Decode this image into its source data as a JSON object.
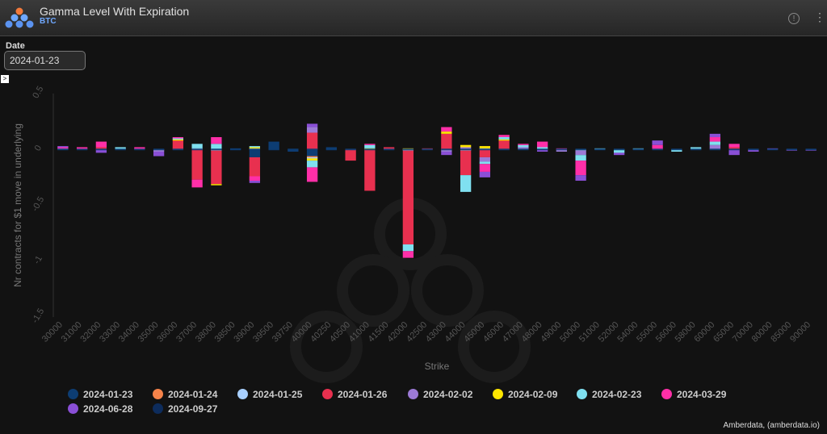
{
  "header": {
    "title": "Gamma Level With Expiration",
    "subtitle": "BTC",
    "info_icon": "info-icon",
    "menu_icon": "more-vertical-icon"
  },
  "filters": {
    "date_label": "Date",
    "date_value": "2024-01-23",
    "expand_glyph": ">"
  },
  "credit": "Amberdata, (amberdata.io)",
  "chart_data": {
    "type": "bar",
    "stacked": true,
    "xlabel": "Strike",
    "ylabel": "Nr contracts for $1 move in underlying",
    "ylim": [
      -1.5,
      0.5
    ],
    "yticks": [
      0.5,
      0,
      -0.5,
      -1,
      -1.5
    ],
    "grid": false,
    "legend_position": "bottom",
    "categories": [
      "30000",
      "31000",
      "32000",
      "33000",
      "34000",
      "35000",
      "36000",
      "37000",
      "38000",
      "38500",
      "39000",
      "39500",
      "39750",
      "40000",
      "40250",
      "40500",
      "41000",
      "41500",
      "42000",
      "42500",
      "43000",
      "44000",
      "45000",
      "46000",
      "47000",
      "48000",
      "49000",
      "50000",
      "51000",
      "52000",
      "54000",
      "55000",
      "56000",
      "58000",
      "60000",
      "65000",
      "70000",
      "80000",
      "85000",
      "90000"
    ],
    "series": [
      {
        "name": "2024-01-23",
        "color": "#0d3d73",
        "values": [
          0,
          0,
          0,
          0,
          0,
          0,
          0,
          0,
          0,
          0.01,
          -0.07,
          0.07,
          -0.02,
          -0.06,
          0.02,
          0,
          0,
          0,
          0,
          0,
          0,
          0,
          0,
          0,
          0,
          0,
          0,
          0,
          0,
          0,
          0,
          0,
          0,
          0,
          0,
          0,
          0,
          0,
          0,
          0
        ]
      },
      {
        "name": "2024-01-24",
        "color": "#f5834a",
        "values": [
          0,
          0,
          0,
          0,
          0,
          0,
          0,
          0,
          0,
          0,
          0,
          0,
          0,
          -0.01,
          0,
          0,
          0,
          0,
          0,
          0,
          0,
          0,
          0,
          0,
          0,
          0,
          0,
          0,
          0,
          0,
          0,
          0,
          0,
          0,
          0,
          0,
          0,
          0,
          0,
          0
        ]
      },
      {
        "name": "2024-01-25",
        "color": "#a8d0ff",
        "values": [
          0,
          0,
          0,
          0,
          0,
          0,
          0,
          0.01,
          -0.01,
          0,
          0.01,
          0,
          0,
          -0.01,
          0,
          0,
          0,
          0,
          -0.01,
          0,
          0,
          -0.01,
          0.01,
          0,
          0,
          0,
          0,
          -0.01,
          0,
          0,
          0,
          0,
          0,
          0,
          0,
          0,
          0,
          0,
          0,
          0
        ]
      },
      {
        "name": "2024-01-26",
        "color": "#e8304f",
        "values": [
          0,
          0,
          0.02,
          0,
          0,
          0,
          0.08,
          -0.27,
          -0.3,
          0,
          -0.17,
          0,
          0,
          0.15,
          0,
          -0.1,
          -0.37,
          0.02,
          -0.84,
          0.01,
          0.14,
          -0.22,
          -0.07,
          0.08,
          0,
          0,
          0,
          0,
          0,
          0,
          0,
          0,
          0,
          0,
          0,
          0.02,
          0,
          0,
          0,
          0
        ]
      },
      {
        "name": "2024-02-02",
        "color": "#9c7ad6",
        "values": [
          0.01,
          0,
          0,
          0,
          0,
          -0.02,
          0,
          0,
          0,
          0,
          0,
          0,
          0,
          0.05,
          0,
          0,
          0,
          0,
          0,
          0,
          -0.02,
          0.02,
          -0.04,
          0,
          0.02,
          0,
          -0.02,
          -0.04,
          0,
          0,
          0,
          0,
          0,
          0,
          0.04,
          0,
          0,
          0,
          0,
          0
        ]
      },
      {
        "name": "2024-02-09",
        "color": "#ffe600",
        "values": [
          0,
          0,
          0,
          0,
          0,
          0,
          0.01,
          0,
          -0.01,
          0,
          0.01,
          0,
          0,
          -0.02,
          0,
          0,
          0.01,
          0,
          0.01,
          0,
          0.02,
          0.02,
          0.02,
          0.01,
          0,
          0,
          0,
          0,
          0,
          0,
          0,
          0,
          0,
          0,
          0,
          0,
          0,
          0,
          0,
          0
        ]
      },
      {
        "name": "2024-02-23",
        "color": "#7fe0f0",
        "values": [
          0,
          0,
          0,
          0.02,
          0,
          0,
          0.01,
          0.04,
          0.05,
          0,
          0.01,
          0,
          0,
          -0.06,
          0,
          0,
          0.03,
          0,
          -0.06,
          0,
          0,
          -0.15,
          -0.02,
          0.02,
          0.02,
          0.02,
          0,
          -0.05,
          0.01,
          -0.03,
          0.01,
          0,
          -0.02,
          0.02,
          0.03,
          0,
          0,
          0,
          0,
          0
        ]
      },
      {
        "name": "2024-03-29",
        "color": "#ff2fa8",
        "values": [
          0.01,
          0.02,
          0.05,
          0,
          0.02,
          0,
          0.01,
          -0.07,
          0.06,
          0,
          -0.04,
          0,
          0,
          -0.13,
          0,
          0,
          0.01,
          0,
          -0.06,
          0,
          0.04,
          0,
          -0.07,
          0.02,
          0.01,
          0.05,
          0.01,
          -0.13,
          0,
          0,
          0,
          0.04,
          0,
          0,
          0.04,
          0.03,
          0,
          0,
          0,
          0
        ]
      },
      {
        "name": "2024-06-28",
        "color": "#8a4fd6",
        "values": [
          0.01,
          0,
          -0.03,
          0,
          0,
          -0.04,
          0,
          0,
          0,
          0,
          -0.02,
          0,
          0,
          0.03,
          0,
          0,
          0,
          0,
          0,
          0,
          -0.03,
          0,
          -0.05,
          0,
          0,
          -0.02,
          0,
          -0.05,
          0,
          -0.02,
          0,
          0.04,
          0,
          0,
          0.03,
          -0.05,
          -0.02,
          0.01,
          -0.01,
          -0.01
        ]
      },
      {
        "name": "2024-09-27",
        "color": "#0d2c5c",
        "values": [
          0,
          0,
          0,
          0,
          0,
          0,
          0,
          0,
          0,
          0,
          0,
          0,
          0,
          0,
          0,
          0,
          0,
          0,
          0,
          0,
          0,
          0,
          0,
          0,
          0,
          0,
          0,
          0,
          0,
          0,
          0,
          0,
          0,
          0,
          0,
          0,
          0,
          0,
          0,
          0
        ]
      }
    ]
  }
}
